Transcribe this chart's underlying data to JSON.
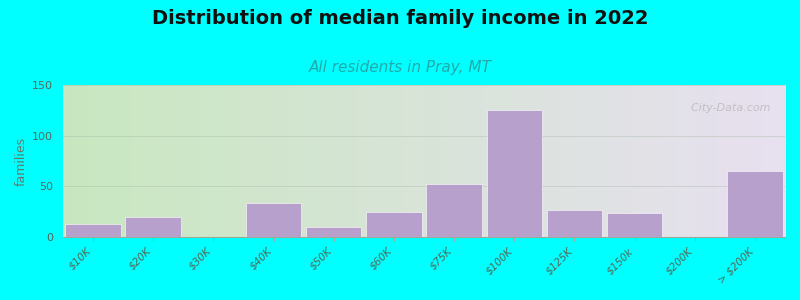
{
  "title": "Distribution of median family income in 2022",
  "subtitle": "All residents in Pray, MT",
  "ylabel": "families",
  "categories": [
    "$10K",
    "$20K",
    "$30K",
    "$40K",
    "$50K",
    "$60K",
    "$75K",
    "$100K",
    "$125K",
    "$150k",
    "$200K",
    "> $200K"
  ],
  "values": [
    13,
    20,
    0,
    33,
    10,
    25,
    52,
    125,
    27,
    24,
    0,
    65
  ],
  "ylim": [
    0,
    150
  ],
  "yticks": [
    0,
    50,
    100,
    150
  ],
  "bar_color": "#b8a0cc",
  "bar_edge_color": "#c8b8d8",
  "bg_color": "#00ffff",
  "grad_left": "#c8e8c0",
  "grad_right": "#e8e0f0",
  "title_fontsize": 14,
  "subtitle_fontsize": 11,
  "subtitle_color": "#22aaaa",
  "watermark": "  City-Data.com",
  "title_color": "#111111"
}
